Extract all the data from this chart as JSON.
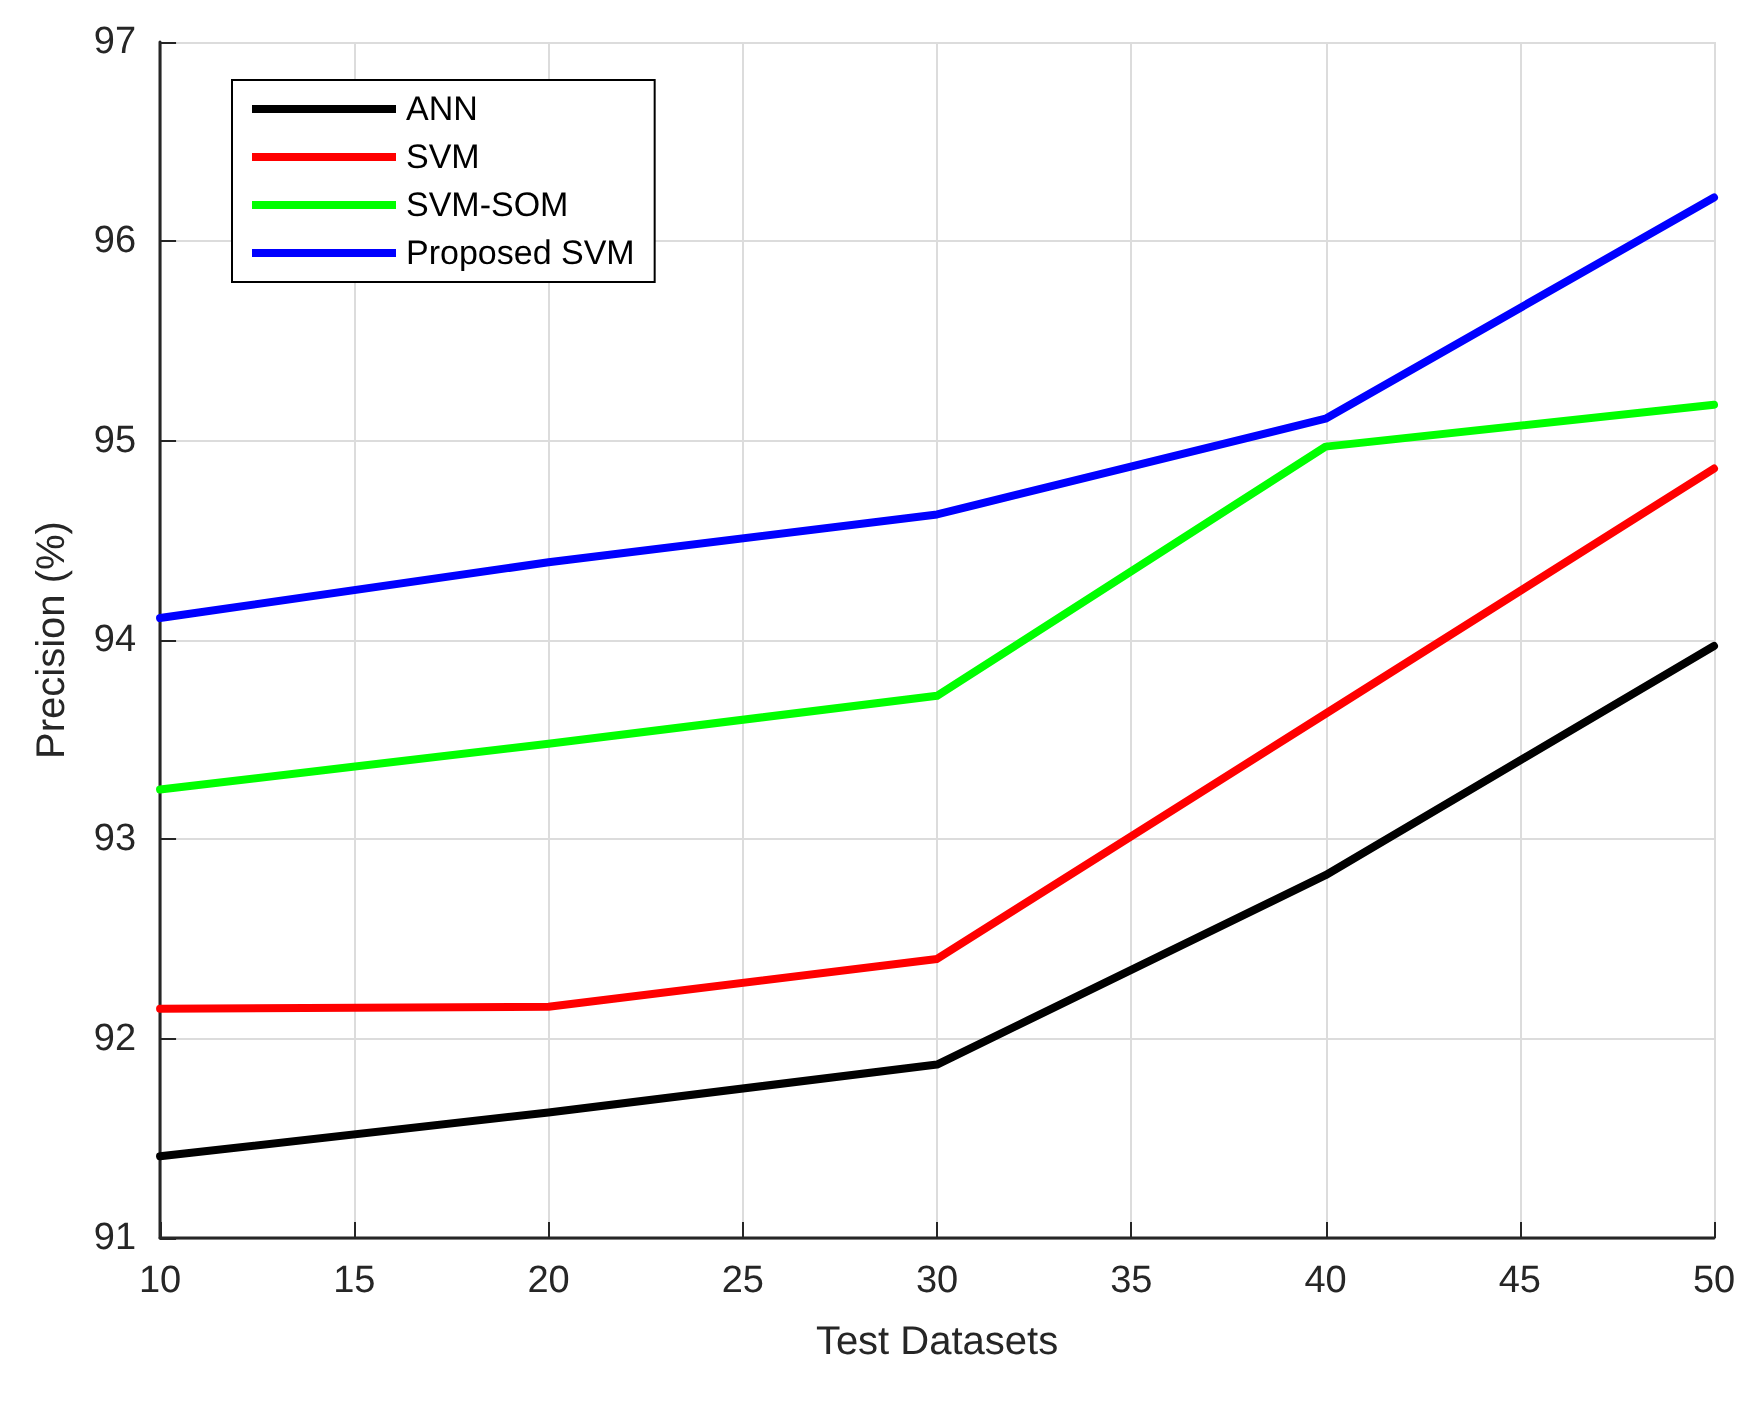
{
  "chart_data": {
    "type": "line",
    "xlabel": "Test Datasets",
    "ylabel": "Precision (%)",
    "x": [
      10,
      20,
      30,
      40,
      50
    ],
    "series": [
      {
        "name": "ANN",
        "color": "#000000",
        "values": [
          91.41,
          91.63,
          91.87,
          92.82,
          93.97
        ]
      },
      {
        "name": "SVM",
        "color": "#ff0000",
        "values": [
          92.15,
          92.16,
          92.4,
          93.63,
          94.86
        ]
      },
      {
        "name": "SVM-SOM",
        "color": "#00ff00",
        "values": [
          93.25,
          93.48,
          93.72,
          94.97,
          95.18
        ]
      },
      {
        "name": "Proposed SVM",
        "color": "#0000ff",
        "values": [
          94.11,
          94.39,
          94.63,
          95.11,
          96.22
        ]
      }
    ],
    "xlim": [
      10,
      50
    ],
    "xticks": [
      10,
      15,
      20,
      25,
      30,
      35,
      40,
      45,
      50
    ],
    "ylim": [
      91,
      97
    ],
    "yticks": [
      91,
      92,
      93,
      94,
      95,
      96,
      97
    ],
    "grid": true,
    "legend": "top left",
    "marker": "none",
    "line_style": "solid"
  }
}
